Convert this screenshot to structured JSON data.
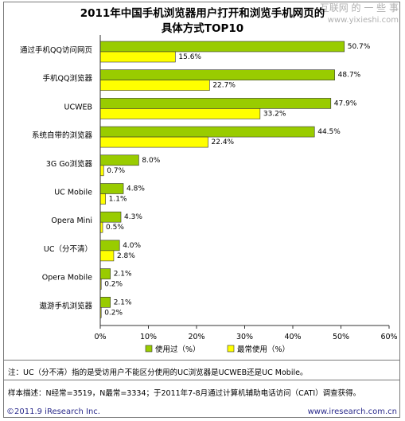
{
  "chart_data": {
    "type": "bar",
    "title": "2011年中国手机浏览器用户打开和浏览手机网页的",
    "subtitle": "具体方式TOP10",
    "categories": [
      "通过手机QQ访问网页",
      "手机QQ浏览器",
      "UCWEB",
      "系统自带的浏览器",
      "3G Go浏览器",
      "UC Mobile",
      "Opera Mini",
      "UC（分不清）",
      "Opera Mobile",
      "遨游手机浏览器"
    ],
    "series": [
      {
        "name": "使用过（%）",
        "color": "#99cc00",
        "values": [
          50.7,
          48.7,
          47.9,
          44.5,
          8.0,
          4.8,
          4.3,
          4.0,
          2.1,
          2.1
        ],
        "labels": [
          "50.7%",
          "48.7%",
          "47.9%",
          "44.5%",
          "8.0%",
          "4.8%",
          "4.3%",
          "4.0%",
          "2.1%",
          "2.1%"
        ]
      },
      {
        "name": "最常使用（%）",
        "color": "#ffff00",
        "values": [
          15.6,
          22.7,
          33.2,
          22.4,
          0.7,
          1.1,
          0.5,
          2.8,
          0.2,
          0.2
        ],
        "labels": [
          "15.6%",
          "22.7%",
          "33.2%",
          "22.4%",
          "0.7%",
          "1.1%",
          "0.5%",
          "2.8%",
          "0.2%",
          "0.2%"
        ]
      }
    ],
    "xlim": [
      0,
      60
    ],
    "xticks": [
      "0%",
      "10%",
      "20%",
      "30%",
      "40%",
      "50%",
      "60%"
    ],
    "grid": false,
    "legend_position": "bottom"
  },
  "note": "注：UC（分不清）指的是受访用户不能区分使用的UC浏览器是UCWEB还是UC Mobile。",
  "sample": "样本描述：N经常=3519，N最常=3334；于2011年7-8月通过计算机辅助电话访问（CATI）调查获得。",
  "copyright": "©2011.9 iResearch Inc.",
  "website": "www.iresearch.com.cn",
  "watermark": {
    "text": "互联网 的 一 些 事",
    "url": "www.yixieshi.com"
  }
}
